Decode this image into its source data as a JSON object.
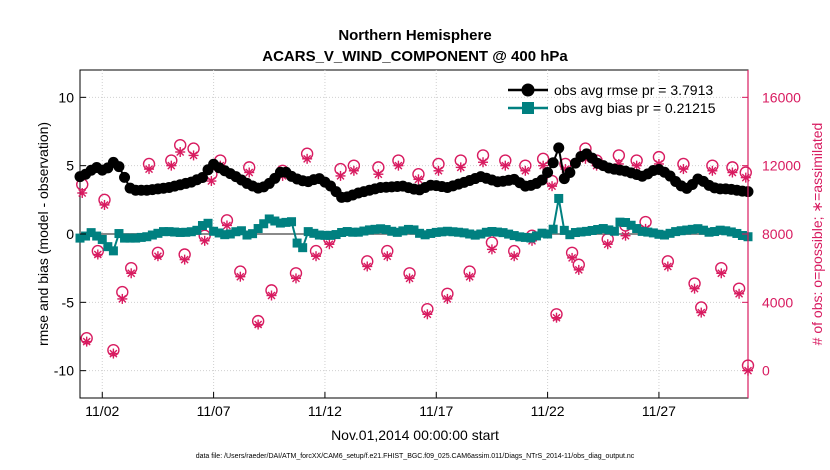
{
  "chart_data": {
    "type": "line",
    "title_line1": "Northern Hemisphere",
    "title_line2": "ACARS_V_WIND_COMPONENT @ 400 hPa",
    "xlabel": "Nov.01,2014 00:00:00 start",
    "ylabel_left": "rmse and bias (model - observation)",
    "ylabel_right": "# of obs: o=possible; ∗=assimilated",
    "source_note": "data file: /Users/raeder/DAI/ATM_forcXX/CAM6_setup/f.e21.FHIST_BGC.f09_025.CAM6assim.011/Diags_NTrS_2014-11/obs_diag_output.nc",
    "x_tick_labels": [
      "11/02",
      "11/07",
      "11/12",
      "11/17",
      "11/22",
      "11/27"
    ],
    "x_tick_days": [
      2,
      7,
      12,
      17,
      22,
      27
    ],
    "xlim_days": [
      1.0,
      31.0
    ],
    "left_axis": {
      "ylim": [
        -12,
        12
      ],
      "ticks": [
        -10,
        -5,
        0,
        5,
        10
      ]
    },
    "right_axis": {
      "ylim": [
        -1600,
        17600
      ],
      "ticks": [
        0,
        4000,
        8000,
        12000,
        16000
      ]
    },
    "legend": {
      "rmse_label": "obs avg rmse pr = 3.7913",
      "bias_label": "obs avg bias pr = 0.21215"
    },
    "colors": {
      "rmse": "#000000",
      "bias": "#008080",
      "counts": "#d81b60",
      "zero_line": "#8a8a8a"
    },
    "rmse_keypoints": [
      [
        1.1,
        4.2
      ],
      [
        1.7,
        4.9
      ],
      [
        2.1,
        4.6
      ],
      [
        2.6,
        5.4
      ],
      [
        3.3,
        3.2
      ],
      [
        4.0,
        3.2
      ],
      [
        5.0,
        3.4
      ],
      [
        6.0,
        3.8
      ],
      [
        6.6,
        4.2
      ],
      [
        6.9,
        5.2
      ],
      [
        7.3,
        4.8
      ],
      [
        8.0,
        4.2
      ],
      [
        8.6,
        3.6
      ],
      [
        9.1,
        3.3
      ],
      [
        9.6,
        3.8
      ],
      [
        10.1,
        4.7
      ],
      [
        10.6,
        4.1
      ],
      [
        11.2,
        3.8
      ],
      [
        11.7,
        4.1
      ],
      [
        12.2,
        3.6
      ],
      [
        12.8,
        2.6
      ],
      [
        13.5,
        3.0
      ],
      [
        14.5,
        3.4
      ],
      [
        15.5,
        3.5
      ],
      [
        16.2,
        3.2
      ],
      [
        16.8,
        3.6
      ],
      [
        17.5,
        3.4
      ],
      [
        18.3,
        3.8
      ],
      [
        19.0,
        4.2
      ],
      [
        19.8,
        3.8
      ],
      [
        20.5,
        4.0
      ],
      [
        21.0,
        3.5
      ],
      [
        21.4,
        3.6
      ],
      [
        21.8,
        4.0
      ],
      [
        22.2,
        5.0
      ],
      [
        22.5,
        6.3
      ],
      [
        22.8,
        3.6
      ],
      [
        23.0,
        4.5
      ],
      [
        23.4,
        5.6
      ],
      [
        23.8,
        5.9
      ],
      [
        24.2,
        5.2
      ],
      [
        24.8,
        4.8
      ],
      [
        25.5,
        4.6
      ],
      [
        26.3,
        4.2
      ],
      [
        26.9,
        4.8
      ],
      [
        27.4,
        4.4
      ],
      [
        27.9,
        3.6
      ],
      [
        28.3,
        3.3
      ],
      [
        28.8,
        4.1
      ],
      [
        29.2,
        3.6
      ],
      [
        29.6,
        3.3
      ],
      [
        30.1,
        3.3
      ],
      [
        30.9,
        3.1
      ]
    ],
    "bias_keypoints": [
      [
        1.1,
        -0.3
      ],
      [
        1.5,
        0.1
      ],
      [
        1.9,
        -0.3
      ],
      [
        2.2,
        -0.6
      ],
      [
        2.4,
        -1.9
      ],
      [
        2.7,
        0.1
      ],
      [
        3.0,
        -0.3
      ],
      [
        3.5,
        -0.3
      ],
      [
        4.0,
        -0.2
      ],
      [
        4.8,
        0.2
      ],
      [
        5.6,
        0.1
      ],
      [
        6.2,
        0.2
      ],
      [
        6.7,
        0.9
      ],
      [
        7.0,
        0.2
      ],
      [
        7.6,
        -0.1
      ],
      [
        8.2,
        0.3
      ],
      [
        8.6,
        -0.2
      ],
      [
        9.0,
        0.4
      ],
      [
        9.5,
        1.1
      ],
      [
        10.0,
        0.8
      ],
      [
        10.5,
        0.9
      ],
      [
        10.9,
        -1.6
      ],
      [
        11.2,
        0.2
      ],
      [
        11.8,
        -0.1
      ],
      [
        12.4,
        -0.1
      ],
      [
        12.9,
        0.2
      ],
      [
        13.4,
        0.1
      ],
      [
        14.0,
        0.3
      ],
      [
        14.6,
        0.4
      ],
      [
        15.2,
        0.1
      ],
      [
        15.9,
        0.4
      ],
      [
        16.4,
        -0.1
      ],
      [
        16.9,
        0.1
      ],
      [
        17.5,
        0.2
      ],
      [
        18.2,
        0.1
      ],
      [
        18.8,
        -0.1
      ],
      [
        19.4,
        0.2
      ],
      [
        20.0,
        0.1
      ],
      [
        20.7,
        -0.2
      ],
      [
        21.3,
        -0.3
      ],
      [
        21.8,
        0.1
      ],
      [
        22.2,
        -0.1
      ],
      [
        22.5,
        2.6
      ],
      [
        22.8,
        -0.2
      ],
      [
        23.2,
        0.1
      ],
      [
        23.8,
        0.2
      ],
      [
        24.5,
        0.4
      ],
      [
        25.0,
        0.2
      ],
      [
        25.3,
        1.0
      ],
      [
        25.8,
        0.6
      ],
      [
        26.2,
        0.2
      ],
      [
        26.7,
        0.1
      ],
      [
        27.2,
        -0.1
      ],
      [
        27.8,
        0.2
      ],
      [
        28.3,
        0.3
      ],
      [
        28.8,
        0.4
      ],
      [
        29.3,
        0.1
      ],
      [
        29.8,
        0.3
      ],
      [
        30.4,
        0.1
      ],
      [
        30.9,
        -0.2
      ]
    ],
    "count_points": [
      [
        1.1,
        10400,
        10900
      ],
      [
        1.3,
        1700,
        1900
      ],
      [
        1.8,
        6800,
        7000
      ],
      [
        2.1,
        9700,
        10000
      ],
      [
        2.5,
        1000,
        1200
      ],
      [
        2.9,
        4200,
        4600
      ],
      [
        3.3,
        5700,
        6000
      ],
      [
        4.1,
        11800,
        12100
      ],
      [
        4.5,
        6700,
        6900
      ],
      [
        5.1,
        12000,
        12300
      ],
      [
        5.5,
        12800,
        13200
      ],
      [
        5.7,
        6500,
        6800
      ],
      [
        6.1,
        12600,
        13000
      ],
      [
        6.6,
        7600,
        7900
      ],
      [
        6.9,
        11100,
        11500
      ],
      [
        7.3,
        12000,
        12300
      ],
      [
        7.6,
        8500,
        8800
      ],
      [
        8.2,
        5500,
        5800
      ],
      [
        8.6,
        11600,
        11900
      ],
      [
        9.0,
        2700,
        2900
      ],
      [
        9.6,
        4400,
        4700
      ],
      [
        10.1,
        11400,
        11700
      ],
      [
        10.7,
        5400,
        5700
      ],
      [
        11.2,
        12400,
        12700
      ],
      [
        11.6,
        6700,
        7000
      ],
      [
        12.2,
        7400,
        7700
      ],
      [
        12.7,
        11400,
        11800
      ],
      [
        13.3,
        11700,
        12000
      ],
      [
        13.9,
        6100,
        6400
      ],
      [
        14.4,
        11500,
        11900
      ],
      [
        14.8,
        6700,
        7000
      ],
      [
        15.3,
        12000,
        12300
      ],
      [
        15.8,
        5400,
        5700
      ],
      [
        16.2,
        11200,
        11500
      ],
      [
        16.6,
        3300,
        3600
      ],
      [
        17.1,
        11700,
        12100
      ],
      [
        17.5,
        4200,
        4500
      ],
      [
        18.1,
        11900,
        12300
      ],
      [
        18.5,
        5500,
        5800
      ],
      [
        19.1,
        12200,
        12600
      ],
      [
        19.5,
        7100,
        7500
      ],
      [
        20.1,
        12000,
        12300
      ],
      [
        20.5,
        6700,
        7000
      ],
      [
        21.0,
        11700,
        12000
      ],
      [
        21.3,
        7600,
        7900
      ],
      [
        21.8,
        12000,
        12400
      ],
      [
        22.2,
        10800,
        11100
      ],
      [
        22.4,
        3100,
        3300
      ],
      [
        22.8,
        11800,
        12100
      ],
      [
        23.1,
        6600,
        6900
      ],
      [
        23.4,
        5900,
        6200
      ],
      [
        23.7,
        12400,
        13000
      ],
      [
        24.2,
        12000,
        12300
      ],
      [
        24.7,
        7400,
        7700
      ],
      [
        25.2,
        12100,
        12600
      ],
      [
        25.5,
        7900,
        8500
      ],
      [
        26.0,
        12000,
        12300
      ],
      [
        26.4,
        8300,
        8700
      ],
      [
        27.0,
        12100,
        12500
      ],
      [
        27.4,
        6100,
        6400
      ],
      [
        28.1,
        11800,
        12100
      ],
      [
        28.6,
        4800,
        5100
      ],
      [
        28.9,
        3400,
        3700
      ],
      [
        29.4,
        11700,
        12000
      ],
      [
        29.8,
        5700,
        6000
      ],
      [
        30.3,
        11600,
        11900
      ],
      [
        30.6,
        4500,
        4800
      ],
      [
        30.9,
        11300,
        11600
      ],
      [
        31.0,
        0,
        300
      ]
    ]
  }
}
